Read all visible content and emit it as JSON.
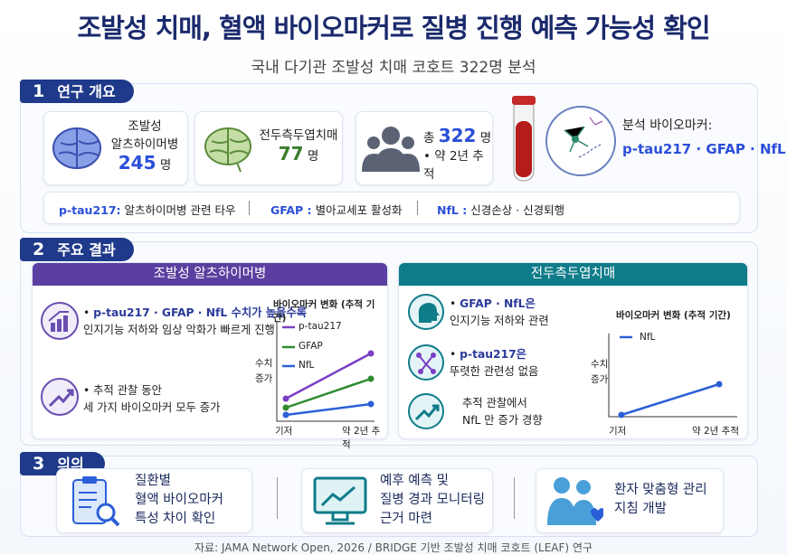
{
  "header": {
    "title": "조발성 치매, 혈액 바이오마커로 질병 진행 예측 가능성 확인",
    "subtitle": "국내 다기관 조발성 치매 코호트 322명 분석"
  },
  "overview": {
    "number": "1",
    "title": "연구 개요",
    "cards": [
      {
        "lines": [
          "조발성",
          "알츠하이머병"
        ],
        "count": "245",
        "unit": "명"
      },
      {
        "lines": [
          "전두측두엽치매"
        ],
        "count": "77",
        "unit": "명"
      },
      {
        "prefix": "총",
        "count": "322",
        "unit": "명",
        "note": "• 약 2년 추적"
      }
    ],
    "biomarkers": {
      "label": "분석 바이오마커:",
      "names": "p-tau217 · GFAP · NfL"
    },
    "definitions": [
      {
        "term": "p-tau217:",
        "desc": "알츠하이머병 관련 타우"
      },
      {
        "term": "GFAP :",
        "desc": "별아교세포 활성화"
      },
      {
        "term": "NfL :",
        "desc": "신경손상 · 신경퇴행"
      }
    ]
  },
  "results": {
    "number": "2",
    "title": "주요 결과",
    "panels": [
      {
        "title": "조발성 알츠하이머병",
        "items": [
          [
            "p-tau217 · GFAP · NfL 수치가 높을수록",
            "인지기능 저하와 임상 악화가 빠르게 진행"
          ],
          [
            "추적 관찰 동안",
            "세 가지 바이오마커 모두 증가"
          ]
        ],
        "chart": {
          "title": "바이오마커 변화 (추적 기간)",
          "ylabel": [
            "수치",
            "증가"
          ],
          "xlabels": [
            "기저",
            "약 2년 추적"
          ],
          "legend": [
            "p-tau217",
            "GFAP",
            "NfL"
          ]
        }
      },
      {
        "title": "전두측두엽치매",
        "items": [
          [
            "GFAP · NfL은",
            "인지기능 저하와 관련"
          ],
          [
            "p-tau217은",
            "뚜렷한 관련성 없음"
          ],
          [
            "추적 관찰에서",
            "NfL 만 증가 경향"
          ]
        ],
        "chart": {
          "title": "바이오마커 변화 (추적 기간)",
          "ylabel": [
            "수치",
            "증가"
          ],
          "xlabels": [
            "기저",
            "약 2년 추적"
          ],
          "legend": [
            "NfL"
          ]
        }
      }
    ]
  },
  "significance": {
    "number": "3",
    "title": "의의",
    "items": [
      [
        "질환별",
        "혈액 바이오마커",
        "특성 차이 확인"
      ],
      [
        "예후 예측 및",
        "질병 경과 모니터링",
        "근거 마련"
      ],
      [
        "환자 맞춤형 관리",
        "지침 개발"
      ]
    ]
  },
  "footer": {
    "source": "자료: JAMA Network Open, 2026 / BRIDGE 기반 조발성 치매 코호트 (LEAF) 연구"
  }
}
